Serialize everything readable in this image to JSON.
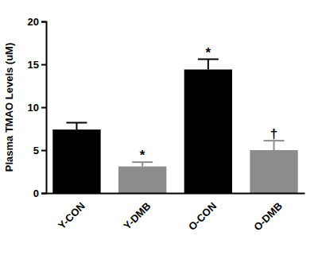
{
  "chart_data": {
    "type": "bar",
    "y_label": "Plasma TMAO Levels (uM)",
    "categories": [
      "Y-CON",
      "Y-DMB",
      "O-CON",
      "O-DMB"
    ],
    "values": [
      7.4,
      3.1,
      14.4,
      5.0
    ],
    "errors": [
      0.8,
      0.5,
      1.2,
      1.1
    ],
    "annotations": [
      null,
      "*",
      "*",
      "†"
    ],
    "colors": [
      "#000000",
      "#8c8c8c",
      "#000000",
      "#8c8c8c"
    ],
    "ylim": [
      0,
      20
    ],
    "yticks": [
      0,
      5,
      10,
      15,
      20
    ],
    "grid": false
  }
}
